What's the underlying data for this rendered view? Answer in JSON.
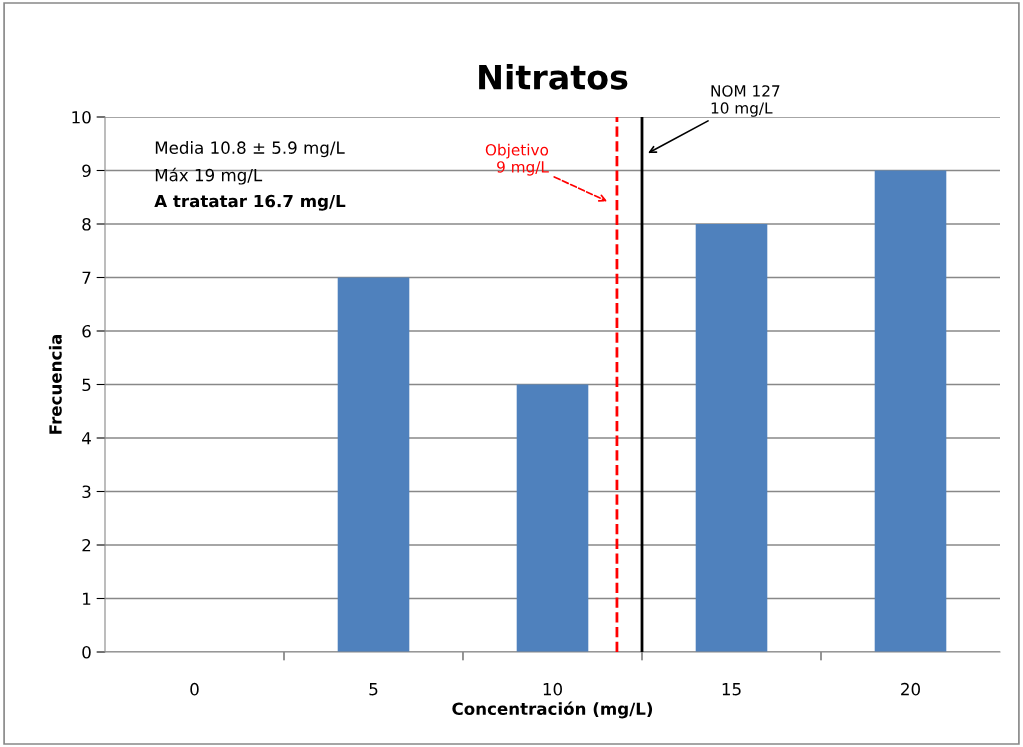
{
  "chart_data": {
    "type": "bar",
    "title": "Nitratos",
    "xlabel": "Concentración (mg/L)",
    "ylabel": "Frecuencia",
    "x": [
      0,
      5,
      10,
      15,
      20
    ],
    "values": [
      0,
      7,
      5,
      8,
      9
    ],
    "color": "#4f81bd",
    "xlim": [
      -2.5,
      22.5
    ],
    "xticks": [
      0,
      5,
      10,
      15,
      20,
      {
        "value": 2.5,
        "label": null
      },
      {
        "value": 7.5,
        "label": null
      },
      {
        "value": 12.5,
        "label": null
      },
      {
        "value": 17.5,
        "label": null
      }
    ],
    "ylim": [
      0,
      10
    ],
    "yticks": [
      0,
      1,
      2,
      3,
      4,
      5,
      6,
      7,
      8,
      9,
      10
    ],
    "grid": "y",
    "ref_lines": [
      {
        "axis": "x",
        "value": 11.8,
        "label": "Objetivo\n9 mg/L",
        "color": "#ff0000",
        "line_style": "dashed"
      },
      {
        "axis": "x",
        "value": 12.5,
        "label": "NOM 127\n10 mg/L",
        "color": "#000000",
        "line_style": "solid"
      }
    ],
    "annotations": [
      "Media 10.8 ± 5.9 mg/L",
      "Máx 19 mg/L",
      "A tratatar 16.7 mg/L"
    ]
  }
}
